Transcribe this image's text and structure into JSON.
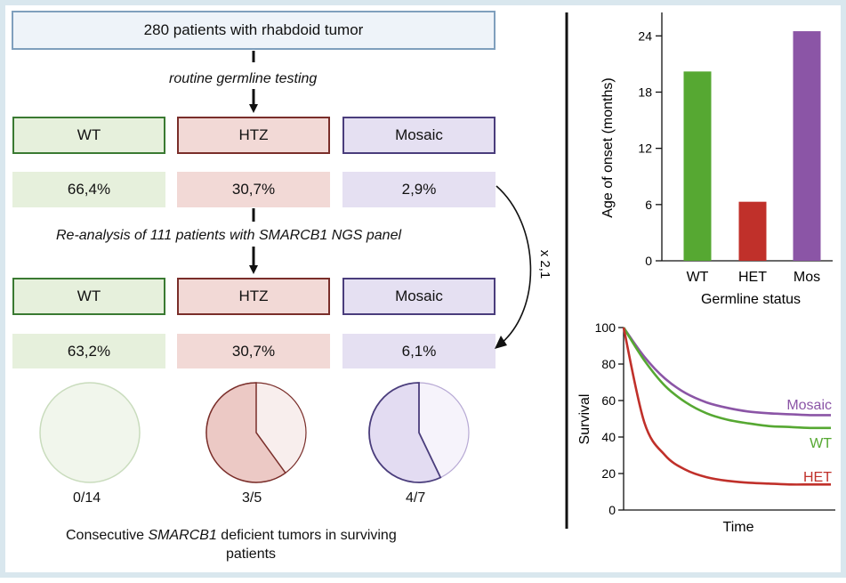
{
  "flow": {
    "top_box": "280 patients with rhabdoid tumor",
    "step1_label": "routine germline testing",
    "categories": [
      "WT",
      "HTZ",
      "Mosaic"
    ],
    "round1_pcts": [
      "66,4%",
      "30,7%",
      "2,9%"
    ],
    "step2_prefix": "Re-analysis of 111 patients with ",
    "step2_italic": "SMARCB1 NGS panel",
    "round2_pcts": [
      "63,2%",
      "30,7%",
      "6,1%"
    ],
    "fold_change": "x 2,1",
    "pies": [
      {
        "label": "0/14",
        "fraction": 0
      },
      {
        "label": "3/5",
        "fraction": 0.6
      },
      {
        "label": "4/7",
        "fraction": 0.571
      }
    ],
    "caption_pre": "Consecutive ",
    "caption_italic": "SMARCB1",
    "caption_post": " deficient tumors in surviving",
    "caption_line2": "patients"
  },
  "colors": {
    "wt_border": "#3a7a32",
    "wt_fill": "#e6f0dc",
    "htz_border": "#7a2e2a",
    "htz_fill": "#f2d9d6",
    "mos_border": "#4a3d7c",
    "mos_fill": "#e5e0f2",
    "top_border": "#7f9fbd",
    "top_fill": "#eef3f9",
    "bar_wt": "#56a832",
    "bar_het": "#c0302a",
    "bar_mos": "#8b55a6"
  },
  "chart_data": [
    {
      "type": "bar",
      "categories": [
        "WT",
        "HET",
        "Mos"
      ],
      "values": [
        20.2,
        6.3,
        24.5
      ],
      "xlabel": "Germline status",
      "ylabel": "Age of onset (months)",
      "yticks": [
        0,
        6,
        12,
        18,
        24
      ],
      "ylim": [
        0,
        26.5
      ]
    },
    {
      "type": "line",
      "xlabel": "Time",
      "ylabel": "Survival",
      "yticks": [
        0,
        20,
        40,
        60,
        80,
        100
      ],
      "ylim": [
        0,
        100
      ],
      "x": [
        0,
        1,
        2,
        3,
        4,
        5,
        6,
        7,
        8,
        9,
        10
      ],
      "series": [
        {
          "name": "Mosaic",
          "values": [
            100,
            84,
            72,
            64,
            59,
            56,
            54,
            53,
            52.5,
            52,
            52
          ]
        },
        {
          "name": "WT",
          "values": [
            100,
            82,
            68,
            59,
            53,
            49.5,
            47.5,
            46,
            45.5,
            45,
            45
          ]
        },
        {
          "name": "HET",
          "values": [
            100,
            48,
            30,
            22,
            18,
            16,
            15,
            14.5,
            14,
            14,
            14
          ]
        }
      ]
    }
  ]
}
